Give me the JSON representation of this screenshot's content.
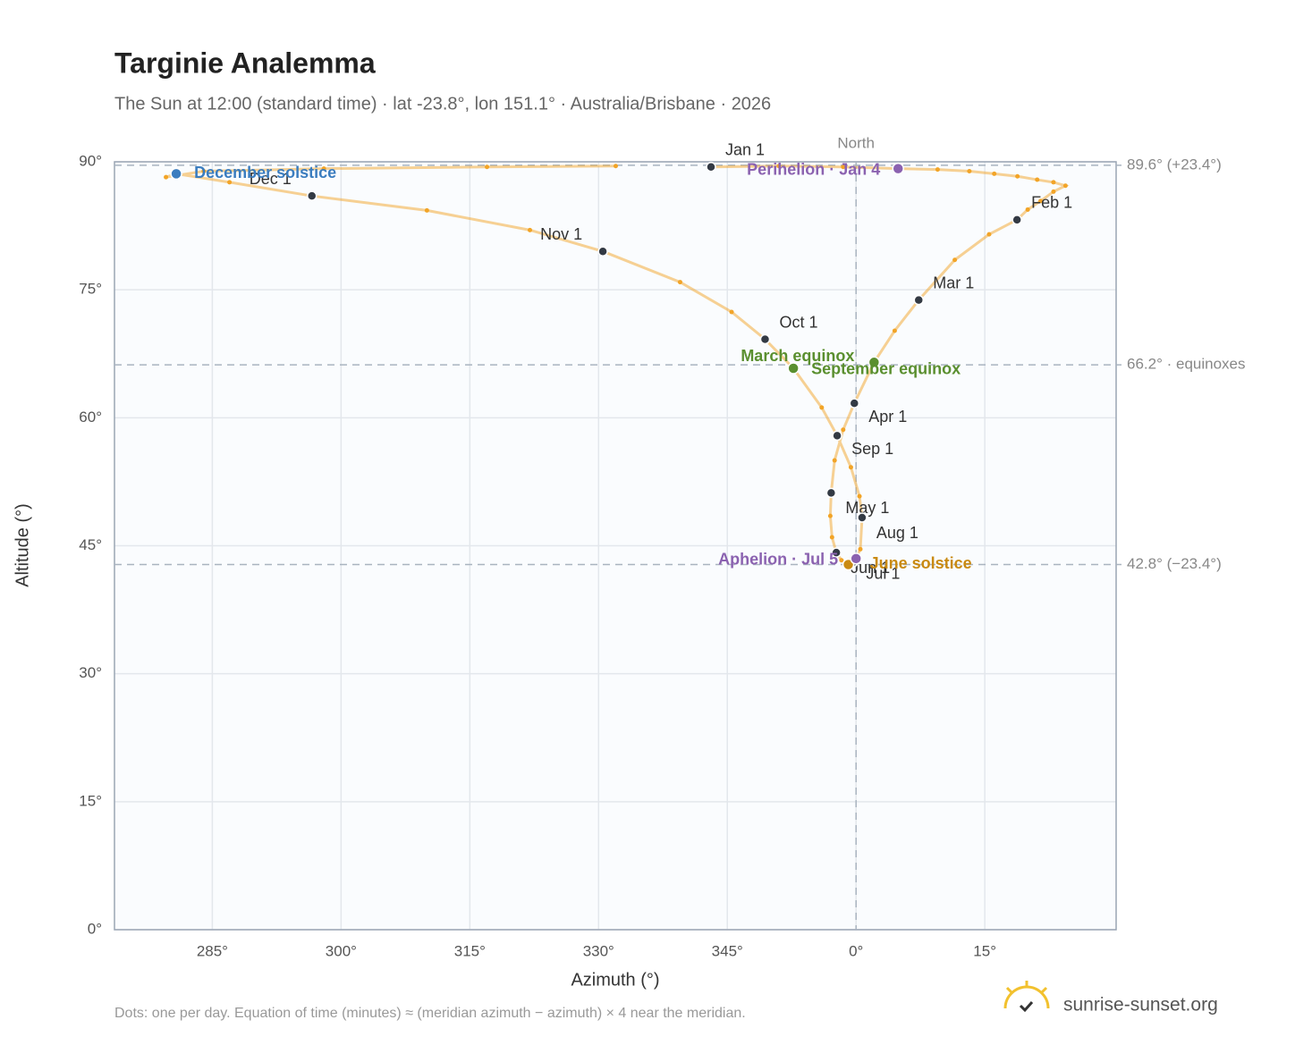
{
  "chart_data": {
    "type": "scatter",
    "title": "Targinie Analemma",
    "subtitle": "The Sun at 12:00 (standard time) · lat -23.8°, lon 151.1° · Australia/Brisbane · 2026",
    "x_label": "Azimuth (°)",
    "y_label": "Altitude (°)",
    "xlim": [
      -86.4,
      30.3
    ],
    "ylim": [
      0,
      90
    ],
    "xticks": [
      {
        "value": -75,
        "label": "285°"
      },
      {
        "value": -60,
        "label": "300°"
      },
      {
        "value": -45,
        "label": "315°"
      },
      {
        "value": -30,
        "label": "330°"
      },
      {
        "value": -15,
        "label": "345°"
      },
      {
        "value": 0,
        "label": "0°"
      },
      {
        "value": 15,
        "label": "15°"
      }
    ],
    "yticks": [
      {
        "value": 0,
        "label": "0°"
      },
      {
        "value": 15,
        "label": "15°"
      },
      {
        "value": 30,
        "label": "30°"
      },
      {
        "value": 45,
        "label": "45°"
      },
      {
        "value": 60,
        "label": "60°"
      },
      {
        "value": 75,
        "label": "75°"
      },
      {
        "value": 90,
        "label": "90°"
      }
    ],
    "grid": true,
    "color": "#f2a427",
    "x": [
      -16.9,
      -9,
      -1.5,
      4.9,
      9.5,
      13.2,
      16.1,
      18.8,
      21.1,
      23,
      24.4,
      23,
      21.5,
      20,
      18.75,
      15.5,
      11.5,
      7.3,
      4.5,
      2.1,
      -0.2,
      -1.5,
      -2.5,
      -2.9,
      -3.0,
      -2.8,
      -2.3,
      -1.7,
      -0.9,
      -0.3,
      0,
      0.5,
      0.7,
      0.4,
      -0.6,
      -2.2,
      -4.0,
      -7.3,
      -10.6,
      -14.5,
      -20.5,
      -29.5,
      -38,
      -50,
      -63.4,
      -73,
      -79.2,
      -80.4,
      -76,
      -62,
      -43,
      -28
    ],
    "y": [
      89.4,
      89.5,
      89.4,
      89.2,
      89.1,
      88.9,
      88.6,
      88.3,
      87.9,
      87.6,
      87.2,
      86.5,
      85.4,
      84.4,
      83.2,
      81.5,
      78.5,
      73.8,
      70.2,
      66.5,
      61.7,
      58.6,
      55.0,
      51.2,
      48.5,
      46.0,
      44.2,
      43.3,
      42.8,
      43.1,
      43.5,
      44.6,
      48.3,
      50.8,
      54.2,
      57.9,
      61.2,
      65.8,
      69.2,
      72.4,
      75.9,
      79.5,
      82,
      84.3,
      86.0,
      87.6,
      88.6,
      88.2,
      88.9,
      89.2,
      89.4,
      89.5
    ],
    "markers": [
      {
        "label": "Jan 1",
        "azimuth": -16.9,
        "altitude": 89.4
      },
      {
        "label": "Feb 1",
        "azimuth": 18.75,
        "altitude": 83.2
      },
      {
        "label": "Mar 1",
        "azimuth": 7.3,
        "altitude": 73.8
      },
      {
        "label": "Apr 1",
        "azimuth": -0.2,
        "altitude": 61.7
      },
      {
        "label": "May 1",
        "azimuth": -2.9,
        "altitude": 51.2
      },
      {
        "label": "Jun 1",
        "azimuth": -2.3,
        "altitude": 44.2
      },
      {
        "label": "Jul 1",
        "azimuth": -0.3,
        "altitude": 43.1
      },
      {
        "label": "Aug 1",
        "azimuth": 0.7,
        "altitude": 48.3
      },
      {
        "label": "Sep 1",
        "azimuth": -2.2,
        "altitude": 57.9
      },
      {
        "label": "Oct 1",
        "azimuth": -10.6,
        "altitude": 69.2
      },
      {
        "label": "Nov 1",
        "azimuth": -29.5,
        "altitude": 79.5
      },
      {
        "label": "Dec 1",
        "azimuth": -63.4,
        "altitude": 86.0
      }
    ],
    "events": [
      {
        "label": "December solstice",
        "azimuth": -79.2,
        "altitude": 88.6,
        "color": "#3b7dbf"
      },
      {
        "label": "March equinox",
        "azimuth": 2.1,
        "altitude": 66.5,
        "color": "#5a8f2f"
      },
      {
        "label": "September equinox",
        "azimuth": -7.3,
        "altitude": 65.8,
        "color": "#5a8f2f"
      },
      {
        "label": "June solstice",
        "azimuth": -0.9,
        "altitude": 42.8,
        "color": "#c98a12"
      },
      {
        "label": "Perihelion · Jan 4",
        "azimuth": 4.9,
        "altitude": 89.2,
        "color": "#8b62b0"
      },
      {
        "label": "Aphelion · Jul 5",
        "azimuth": 0,
        "altitude": 43.5,
        "color": "#8b62b0"
      }
    ],
    "reference_lines": [
      {
        "altitude": 89.6,
        "label": "89.6° (+23.4°)"
      },
      {
        "altitude": 66.2,
        "label": "66.2° · equinoxes"
      },
      {
        "altitude": 42.8,
        "label": "42.8° (−23.4°)"
      }
    ],
    "north_line": {
      "azimuth": 0,
      "label": "North"
    },
    "footnote": "Dots: one per day. Equation of time (minutes) ≈ (meridian azimuth − azimuth) × 4 near the meridian.",
    "brand": "sunrise-sunset.org"
  }
}
